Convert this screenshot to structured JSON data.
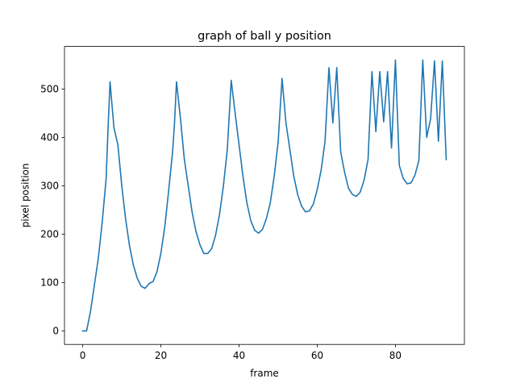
{
  "chart_data": {
    "type": "line",
    "title": "graph of ball y position",
    "xlabel": "frame",
    "ylabel": "pixel position",
    "xlim": [
      -4.65,
      97.65
    ],
    "ylim": [
      -27.95,
      587.95
    ],
    "xticks": [
      0,
      20,
      40,
      60,
      80
    ],
    "yticks": [
      0,
      100,
      200,
      300,
      400,
      500
    ],
    "grid": false,
    "color": "#1f77b4",
    "x": [
      0,
      1,
      2,
      3,
      4,
      5,
      6,
      6.5,
      7,
      8,
      9,
      10,
      11,
      12,
      13,
      14,
      15,
      16,
      17,
      18,
      19,
      20,
      21,
      22,
      23,
      23.5,
      24,
      25,
      26,
      27,
      28,
      29,
      30,
      31,
      32,
      33,
      34,
      35,
      36,
      37,
      38,
      39,
      40,
      41,
      42,
      43,
      44,
      45,
      46,
      47,
      48,
      49,
      50,
      51,
      52,
      53,
      54,
      55,
      56,
      57,
      58,
      59,
      60,
      61,
      62,
      63,
      64,
      65,
      66,
      67,
      68,
      69,
      70,
      71,
      72,
      73,
      74,
      75,
      76,
      77,
      78,
      79,
      80,
      81,
      82,
      83,
      84,
      85,
      86,
      87,
      88,
      89,
      90,
      91,
      92,
      93
    ],
    "y": [
      0,
      0,
      40,
      95,
      150,
      225,
      315,
      420,
      515,
      420,
      385,
      300,
      230,
      175,
      135,
      108,
      92,
      88,
      98,
      102,
      122,
      160,
      215,
      290,
      370,
      430,
      515,
      440,
      355,
      300,
      245,
      205,
      178,
      160,
      160,
      170,
      198,
      240,
      300,
      375,
      518,
      450,
      385,
      320,
      265,
      228,
      208,
      202,
      210,
      232,
      265,
      320,
      390,
      522,
      430,
      375,
      320,
      282,
      258,
      246,
      248,
      262,
      292,
      332,
      392,
      544,
      430,
      544,
      370,
      328,
      295,
      282,
      278,
      287,
      312,
      354,
      536,
      412,
      536,
      432,
      536,
      378,
      560,
      342,
      315,
      304,
      306,
      322,
      352,
      560,
      400,
      438,
      558,
      392,
      558,
      354
    ]
  }
}
